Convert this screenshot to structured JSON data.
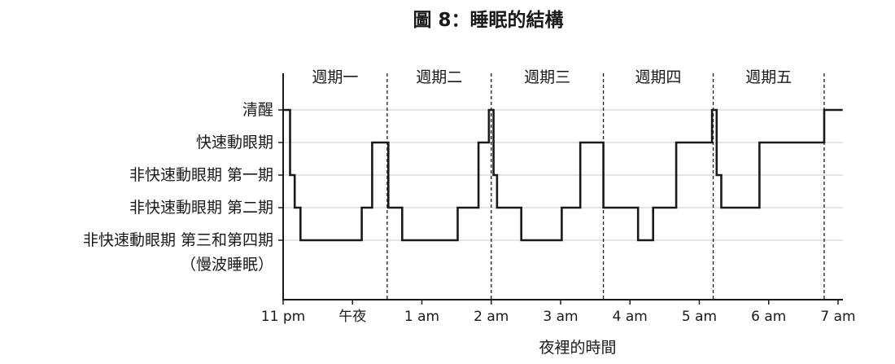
{
  "chart_data": {
    "type": "line",
    "step": true,
    "title": "圖 8：睡眠的結構",
    "xlabel": "夜裡的時間",
    "grid": true,
    "x_range": [
      "23:00",
      "07:04"
    ],
    "x_ticks": [
      {
        "label": "11 pm",
        "time": "23:00"
      },
      {
        "label": "午夜",
        "time": "00:00"
      },
      {
        "label": "1 am",
        "time": "01:00"
      },
      {
        "label": "2 am",
        "time": "02:00"
      },
      {
        "label": "3 am",
        "time": "03:00"
      },
      {
        "label": "4 am",
        "time": "04:00"
      },
      {
        "label": "5 am",
        "time": "05:00"
      },
      {
        "label": "6 am",
        "time": "06:00"
      },
      {
        "label": "7 am",
        "time": "07:00"
      }
    ],
    "y_categories": [
      {
        "label": "清醒"
      },
      {
        "label": "快速動眼期"
      },
      {
        "label": "非快速動眼期 第一期"
      },
      {
        "label": "非快速動眼期 第二期"
      },
      {
        "label": "非快速動眼期 第三和第四期",
        "note": "（慢波睡眠）"
      }
    ],
    "cycles": [
      {
        "label": "週期一",
        "start": "23:00",
        "end": "00:30"
      },
      {
        "label": "週期二",
        "start": "00:30",
        "end": "02:00"
      },
      {
        "label": "週期三",
        "start": "02:00",
        "end": "03:37"
      },
      {
        "label": "週期四",
        "start": "03:37",
        "end": "05:12"
      },
      {
        "label": "週期五",
        "start": "05:12",
        "end": "06:48"
      }
    ],
    "series": [
      {
        "segments": [
          {
            "from": "23:00",
            "to": "23:06",
            "stage": "清醒"
          },
          {
            "from": "23:06",
            "to": "23:10",
            "stage": "非快速動眼期 第一期"
          },
          {
            "from": "23:10",
            "to": "23:15",
            "stage": "非快速動眼期 第二期"
          },
          {
            "from": "23:15",
            "to": "00:08",
            "stage": "非快速動眼期 第三和第四期"
          },
          {
            "from": "00:08",
            "to": "00:17",
            "stage": "非快速動眼期 第二期"
          },
          {
            "from": "00:17",
            "to": "00:31",
            "stage": "快速動眼期"
          },
          {
            "from": "00:31",
            "to": "00:43",
            "stage": "非快速動眼期 第二期"
          },
          {
            "from": "00:43",
            "to": "01:31",
            "stage": "非快速動眼期 第三和第四期"
          },
          {
            "from": "01:31",
            "to": "01:49",
            "stage": "非快速動眼期 第二期"
          },
          {
            "from": "01:49",
            "to": "01:58",
            "stage": "快速動眼期"
          },
          {
            "from": "01:58",
            "to": "02:02",
            "stage": "清醒"
          },
          {
            "from": "02:02",
            "to": "02:05",
            "stage": "非快速動眼期 第一期"
          },
          {
            "from": "02:05",
            "to": "02:26",
            "stage": "非快速動眼期 第二期"
          },
          {
            "from": "02:26",
            "to": "03:01",
            "stage": "非快速動眼期 第三和第四期"
          },
          {
            "from": "03:01",
            "to": "03:17",
            "stage": "非快速動眼期 第二期"
          },
          {
            "from": "03:17",
            "to": "03:37",
            "stage": "快速動眼期"
          },
          {
            "from": "03:37",
            "to": "04:07",
            "stage": "非快速動眼期 第二期"
          },
          {
            "from": "04:07",
            "to": "04:20",
            "stage": "非快速動眼期 第三和第四期"
          },
          {
            "from": "04:20",
            "to": "04:40",
            "stage": "非快速動眼期 第二期"
          },
          {
            "from": "04:40",
            "to": "05:11",
            "stage": "快速動眼期"
          },
          {
            "from": "05:11",
            "to": "05:15",
            "stage": "清醒"
          },
          {
            "from": "05:15",
            "to": "05:19",
            "stage": "非快速動眼期 第一期"
          },
          {
            "from": "05:19",
            "to": "05:52",
            "stage": "非快速動眼期 第二期"
          },
          {
            "from": "05:52",
            "to": "06:48",
            "stage": "快速動眼期"
          },
          {
            "from": "06:48",
            "to": "07:04",
            "stage": "清醒"
          }
        ]
      }
    ],
    "colors": {
      "line": "#1a1a1a",
      "grid": "#c8c8c8"
    }
  }
}
